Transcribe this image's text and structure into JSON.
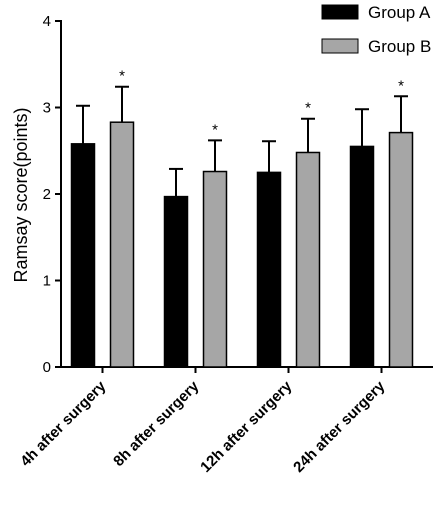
{
  "chart_data": {
    "type": "bar",
    "title": "",
    "xlabel": "",
    "ylabel": "Ramsay score(points)",
    "ylim": [
      0,
      4
    ],
    "yticks": [
      "0",
      "1",
      "2",
      "3",
      "4"
    ],
    "categories": [
      "4h after surgery",
      "8h after surgery",
      "12h after surgery",
      "24h after surgery"
    ],
    "series": [
      {
        "name": "Group A",
        "color": "#000000",
        "values": [
          2.58,
          1.97,
          2.25,
          2.55
        ],
        "errors": [
          0.44,
          0.32,
          0.36,
          0.43
        ]
      },
      {
        "name": "Group B",
        "color": "#a6a6a6",
        "values": [
          2.83,
          2.26,
          2.48,
          2.71
        ],
        "errors": [
          0.41,
          0.36,
          0.39,
          0.42
        ]
      }
    ],
    "annotations": [
      "*",
      "*",
      "*",
      "*"
    ],
    "legend": {
      "position": "top-right"
    },
    "grid": false
  }
}
